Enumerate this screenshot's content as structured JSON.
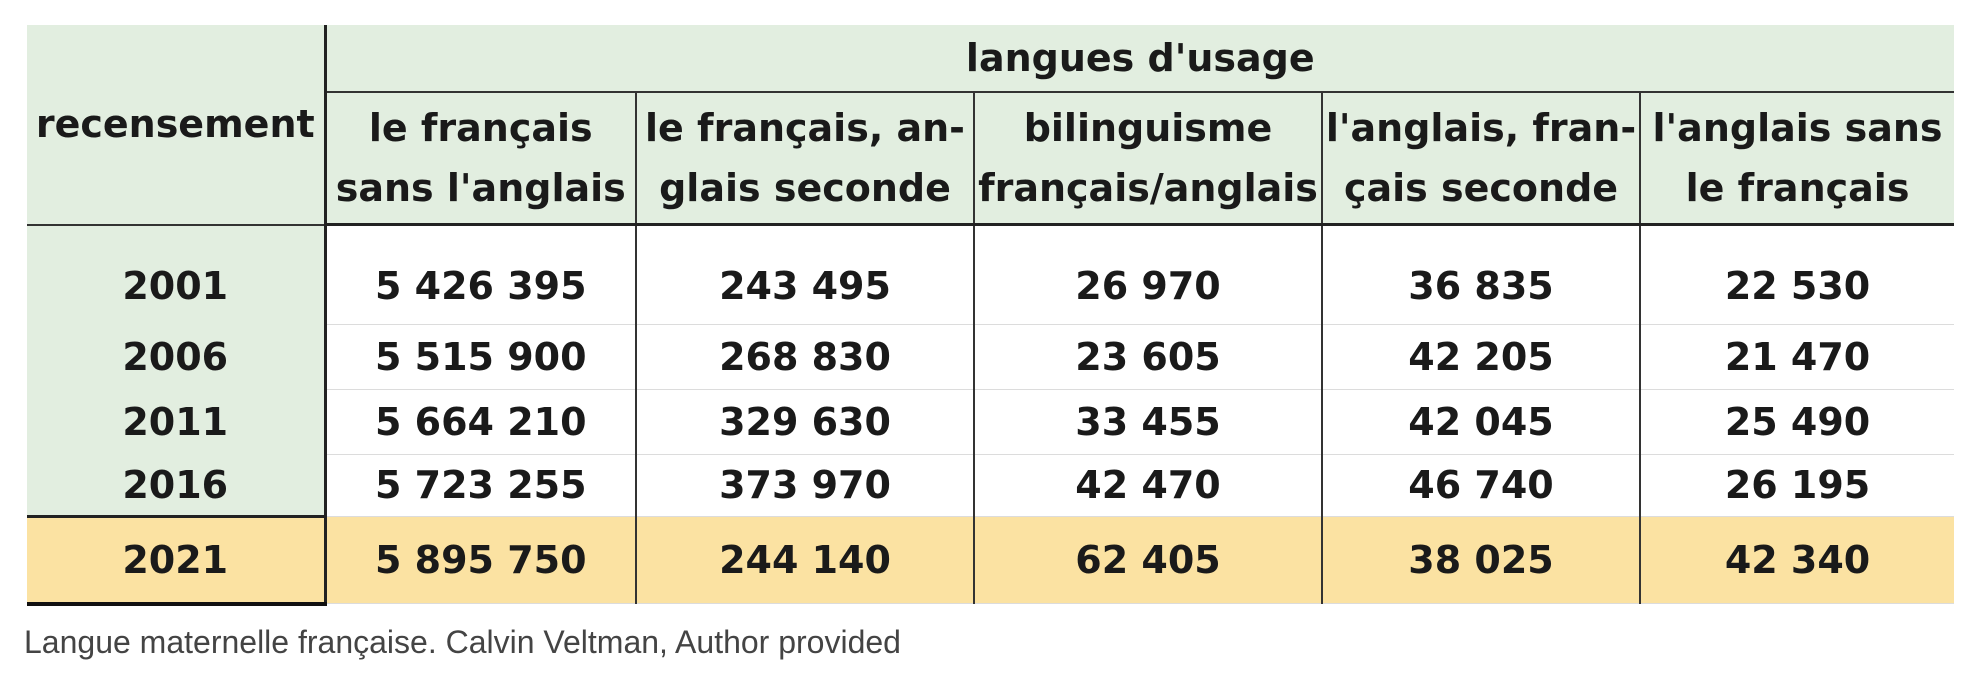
{
  "chart_data": {
    "type": "table",
    "row_header": "recensement",
    "column_group": "langues d'usage",
    "columns": [
      [
        "le français",
        "sans l'anglais"
      ],
      [
        "le français, an-",
        "glais seconde"
      ],
      [
        "bilinguisme",
        "français/anglais"
      ],
      [
        "l'anglais, fran-",
        "çais seconde"
      ],
      [
        "l'anglais sans",
        "le français"
      ]
    ],
    "rows": [
      {
        "year": "2001",
        "values": [
          "5 426 395",
          "243 495",
          "26 970",
          "36 835",
          "22 530"
        ]
      },
      {
        "year": "2006",
        "values": [
          "5 515 900",
          "268 830",
          "23 605",
          "42 205",
          "21 470"
        ]
      },
      {
        "year": "2011",
        "values": [
          "5 664 210",
          "329 630",
          "33 455",
          "42 045",
          "25 490"
        ]
      },
      {
        "year": "2016",
        "values": [
          "5 723 255",
          "373 970",
          "42 470",
          "46 740",
          "26 195"
        ]
      },
      {
        "year": "2021",
        "values": [
          "5 895 750",
          "244 140",
          "62 405",
          "38 025",
          "42 340"
        ]
      }
    ],
    "highlight_row": "2021",
    "highlight_color": "#fbe2a2",
    "header_color": "#e2eee0"
  },
  "caption": "Langue maternelle française. Calvin Veltman, Author provided"
}
